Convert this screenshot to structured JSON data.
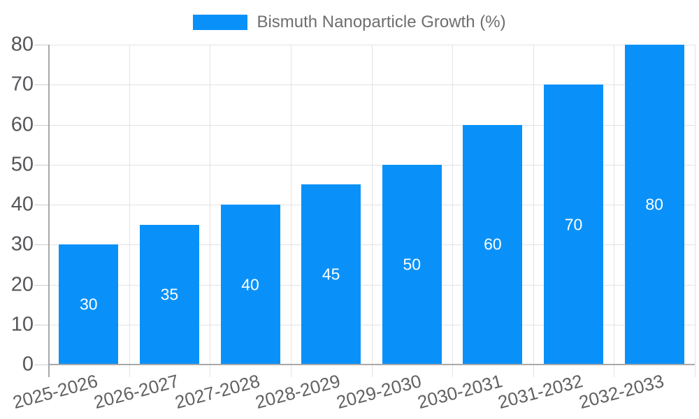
{
  "chart_data": {
    "type": "bar",
    "title": "Bismuth Nanoparticle Growth (%)",
    "legend_position": "top",
    "categories": [
      "2025-2026",
      "2026-2027",
      "2027-2028",
      "2028-2029",
      "2029-2030",
      "2030-2031",
      "2031-2032",
      "2032-2033"
    ],
    "values": [
      30,
      35,
      40,
      45,
      50,
      60,
      70,
      80
    ],
    "xlabel": "",
    "ylabel": "",
    "ylim": [
      0,
      80
    ],
    "yticks": [
      0,
      10,
      20,
      30,
      40,
      50,
      60,
      70,
      80
    ],
    "grid": true,
    "value_labels_inside_bars": true,
    "colors": {
      "bar": "#0991f9",
      "value_label": "#ffffff",
      "axis_line": "#a8a8a8",
      "gridline": "#e3e3e3",
      "tick": "#cdcdcd",
      "y_tick_label": "#55565a",
      "x_tick_label": "#616161",
      "legend_text": "#6e6e6e",
      "background": "#ffffff"
    }
  }
}
